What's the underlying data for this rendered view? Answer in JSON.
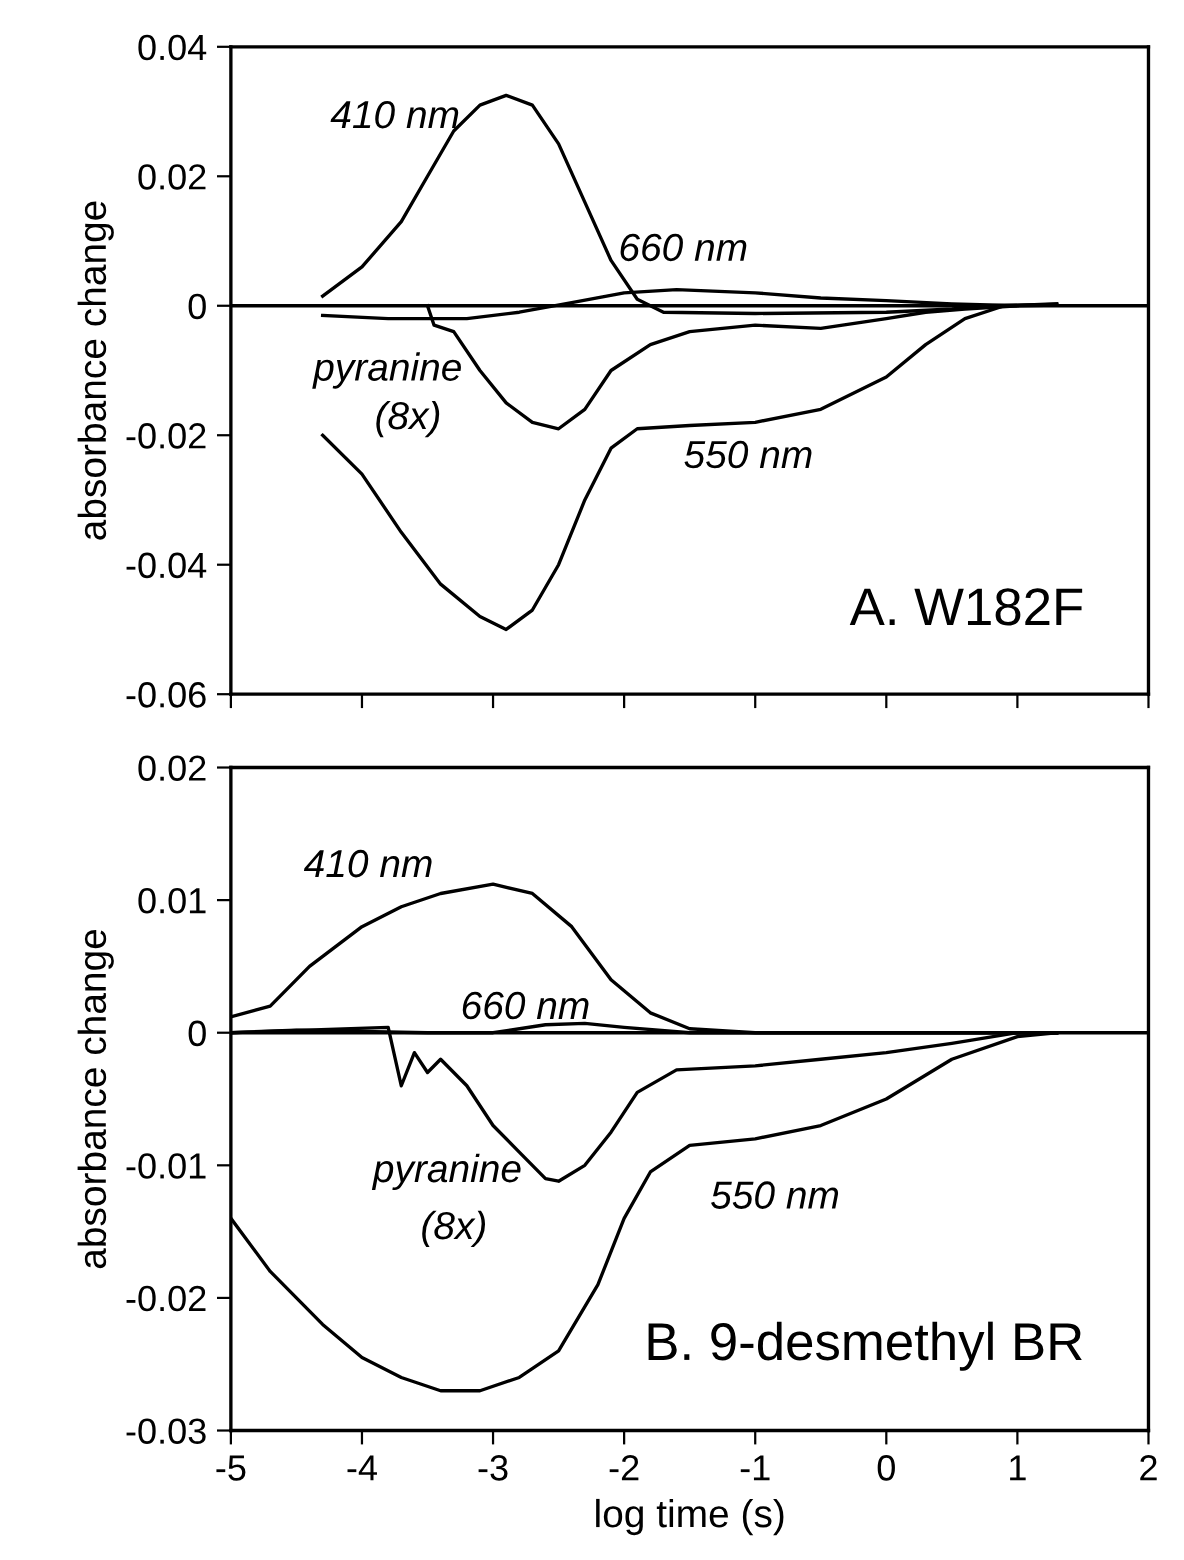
{
  "chart_data": [
    {
      "type": "line",
      "title": "A. W182F",
      "ylabel": "absorbance change",
      "xlim": [
        -5,
        2
      ],
      "ylim": [
        -0.06,
        0.04
      ],
      "xticks": [
        -5,
        -4,
        -3,
        -2,
        -1,
        0,
        1,
        2
      ],
      "yticks": [
        {
          "value": -0.06,
          "label": "-0.06"
        },
        {
          "value": -0.04,
          "label": "-0.04"
        },
        {
          "value": -0.02,
          "label": "-0.02"
        },
        0,
        0.02,
        0.04
      ],
      "tick_labels": "y",
      "grid": false,
      "legend": false,
      "marker": "none",
      "line_style": "solid",
      "ref_lines": [
        {
          "axis": "y",
          "value": 0,
          "color": "#000000"
        }
      ],
      "series": [
        {
          "color": "#000000",
          "x": [
            -4.3,
            -4.0,
            -3.7,
            -3.5,
            -3.3,
            -3.1,
            -2.9,
            -2.7,
            -2.5,
            -2.3,
            -2.1,
            -1.9,
            -1.7,
            -1.0,
            0,
            0.5,
            0.8,
            1.3
          ],
          "values": [
            0.0015,
            0.006,
            0.013,
            0.02,
            0.027,
            0.031,
            0.0325,
            0.031,
            0.025,
            0.016,
            0.007,
            0.001,
            -0.001,
            -0.0012,
            -0.001,
            -0.0005,
            0,
            0.0002
          ]
        },
        {
          "color": "#000000",
          "x": [
            -4.3,
            -3.8,
            -3.2,
            -2.8,
            -2.4,
            -2.0,
            -1.6,
            -1.0,
            -0.5,
            0,
            0.5,
            1.0,
            1.3
          ],
          "values": [
            -0.0015,
            -0.002,
            -0.002,
            -0.001,
            0.0005,
            0.002,
            0.0025,
            0.002,
            0.0012,
            0.0008,
            0.0003,
            0,
            0.0001
          ]
        },
        {
          "color": "#000000",
          "x": [
            -3.5,
            -3.45,
            -3.3,
            -3.1,
            -2.9,
            -2.7,
            -2.5,
            -2.3,
            -2.1,
            -1.8,
            -1.5,
            -1.0,
            -0.5,
            0,
            0.3,
            0.6,
            1.0
          ],
          "values": [
            0,
            -0.003,
            -0.004,
            -0.01,
            -0.015,
            -0.018,
            -0.019,
            -0.016,
            -0.01,
            -0.006,
            -0.004,
            -0.003,
            -0.0035,
            -0.002,
            -0.001,
            -0.0005,
            0
          ]
        },
        {
          "color": "#000000",
          "x": [
            -4.3,
            -4.0,
            -3.7,
            -3.4,
            -3.1,
            -2.9,
            -2.7,
            -2.5,
            -2.3,
            -2.1,
            -1.9,
            -1.5,
            -1.0,
            -0.5,
            0,
            0.3,
            0.6,
            0.9,
            1.3
          ],
          "values": [
            -0.02,
            -0.026,
            -0.035,
            -0.043,
            -0.048,
            -0.05,
            -0.047,
            -0.04,
            -0.03,
            -0.022,
            -0.019,
            -0.0185,
            -0.018,
            -0.016,
            -0.011,
            -0.006,
            -0.002,
            0,
            0.0003
          ]
        }
      ],
      "annotations": [
        "410 nm",
        "660 nm",
        "pyranine",
        "(8x)",
        "550 nm"
      ]
    },
    {
      "type": "line",
      "title": "B. 9-desmethyl BR",
      "ylabel": "absorbance change",
      "xlabel": "log time (s)",
      "xlim": [
        -5,
        2
      ],
      "ylim": [
        -0.03,
        0.02
      ],
      "xticks": [
        -5,
        -4,
        -3,
        -2,
        -1,
        0,
        1,
        2
      ],
      "yticks": [
        {
          "value": -0.03,
          "label": "-0.03"
        },
        {
          "value": -0.02,
          "label": "-0.02"
        },
        {
          "value": -0.01,
          "label": "-0.01"
        },
        0,
        0.01,
        0.02
      ],
      "grid": false,
      "legend": false,
      "marker": "none",
      "line_style": "solid",
      "ref_lines": [
        {
          "axis": "y",
          "value": 0,
          "color": "#000000"
        }
      ],
      "series": [
        {
          "color": "#000000",
          "x": [
            -5,
            -4.7,
            -4.4,
            -4.0,
            -3.7,
            -3.4,
            -3.0,
            -2.7,
            -2.4,
            -2.1,
            -1.8,
            -1.5,
            -1.0,
            1.3
          ],
          "values": [
            0.0012,
            0.002,
            0.005,
            0.008,
            0.0095,
            0.0105,
            0.0112,
            0.0105,
            0.008,
            0.004,
            0.0015,
            0.0003,
            0,
            0
          ]
        },
        {
          "color": "#000000",
          "x": [
            -5,
            -4.5,
            -3.5,
            -3.0,
            -2.6,
            -2.3,
            -2.0,
            -1.5,
            1.3
          ],
          "values": [
            0,
            0.0002,
            0,
            0,
            0.0006,
            0.0007,
            0.0004,
            0,
            0
          ]
        },
        {
          "color": "#000000",
          "x": [
            -5,
            -3.8,
            -3.7,
            -3.6,
            -3.5,
            -3.4,
            -3.2,
            -3.0,
            -2.8,
            -2.6,
            -2.5,
            -2.3,
            -2.1,
            -1.9,
            -1.6,
            -1.0,
            -0.5,
            0,
            0.5,
            1.0,
            1.3
          ],
          "values": [
            0,
            0.0004,
            -0.004,
            -0.0015,
            -0.003,
            -0.002,
            -0.004,
            -0.007,
            -0.009,
            -0.011,
            -0.0112,
            -0.01,
            -0.0075,
            -0.0045,
            -0.0028,
            -0.0025,
            -0.002,
            -0.0015,
            -0.0008,
            0,
            0
          ]
        },
        {
          "color": "#000000",
          "x": [
            -5,
            -4.7,
            -4.3,
            -4.0,
            -3.7,
            -3.4,
            -3.1,
            -2.8,
            -2.5,
            -2.2,
            -2.0,
            -1.8,
            -1.5,
            -1.0,
            -0.5,
            0,
            0.5,
            1.0,
            1.3
          ],
          "values": [
            -0.014,
            -0.018,
            -0.022,
            -0.0245,
            -0.026,
            -0.027,
            -0.027,
            -0.026,
            -0.024,
            -0.019,
            -0.014,
            -0.0105,
            -0.0085,
            -0.008,
            -0.007,
            -0.005,
            -0.002,
            -0.0003,
            0
          ]
        }
      ],
      "annotations": [
        "410 nm",
        "660 nm",
        "pyranine",
        "(8x)",
        "550 nm"
      ]
    }
  ]
}
